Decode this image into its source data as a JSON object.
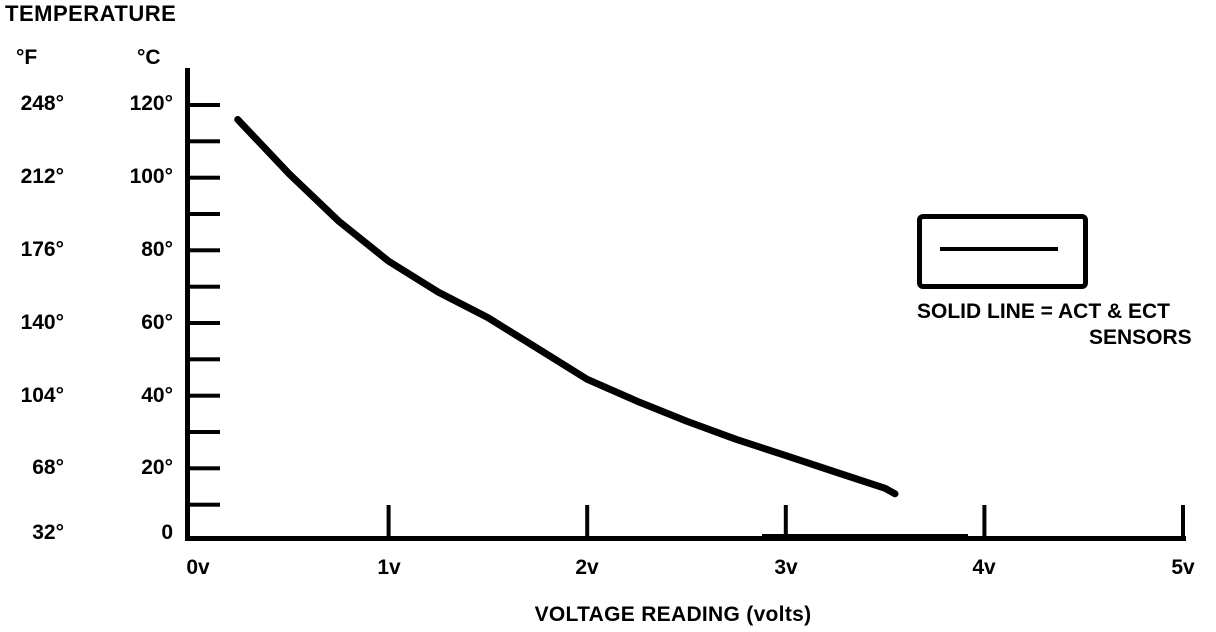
{
  "title": "TEMPERATURE",
  "colors": {
    "ink": "#000000",
    "bg": "#ffffff"
  },
  "scale": {
    "f_header": "°F",
    "c_header": "°C",
    "rows": [
      {
        "f": "248°",
        "c": "120°"
      },
      {
        "f": "212°",
        "c": "100°"
      },
      {
        "f": "176°",
        "c": "80°"
      },
      {
        "f": "140°",
        "c": "60°"
      },
      {
        "f": "104°",
        "c": "40°"
      },
      {
        "f": "68°",
        "c": "20°"
      },
      {
        "f": "32°",
        "c": "0"
      }
    ]
  },
  "xaxis": {
    "labels": [
      "0v",
      "1v",
      "2v",
      "3v",
      "4v",
      "5v"
    ],
    "title": "VOLTAGE READING (volts)"
  },
  "legend": {
    "line1": "SOLID LINE = ACT & ECT",
    "line2": "SENSORS",
    "symbol": "solid-line-sample"
  },
  "chart_data": {
    "type": "line",
    "title": "TEMPERATURE",
    "xlabel": "VOLTAGE READING (volts)",
    "ylabel": "TEMPERATURE (°F / °C)",
    "x_range_volts": [
      0,
      5
    ],
    "y_range_celsius": [
      0,
      120
    ],
    "y_range_fahrenheit": [
      32,
      248
    ],
    "x_tick_step_volts": 1,
    "y_major_tick_step_c": 20,
    "y_minor_tick_step_c": 10,
    "grid": false,
    "legend_position": "right",
    "series": [
      {
        "name": "ACT & ECT SENSORS",
        "style": "solid",
        "points_v_c": [
          [
            0.24,
            116
          ],
          [
            0.5,
            101
          ],
          [
            0.75,
            88
          ],
          [
            1.0,
            77
          ],
          [
            1.25,
            68.5
          ],
          [
            1.5,
            61.5
          ],
          [
            1.75,
            53
          ],
          [
            2.0,
            44.5
          ],
          [
            2.25,
            38.5
          ],
          [
            2.5,
            33
          ],
          [
            2.75,
            28
          ],
          [
            3.0,
            23.5
          ],
          [
            3.25,
            19
          ],
          [
            3.5,
            14.5
          ],
          [
            3.55,
            13
          ]
        ]
      }
    ]
  }
}
